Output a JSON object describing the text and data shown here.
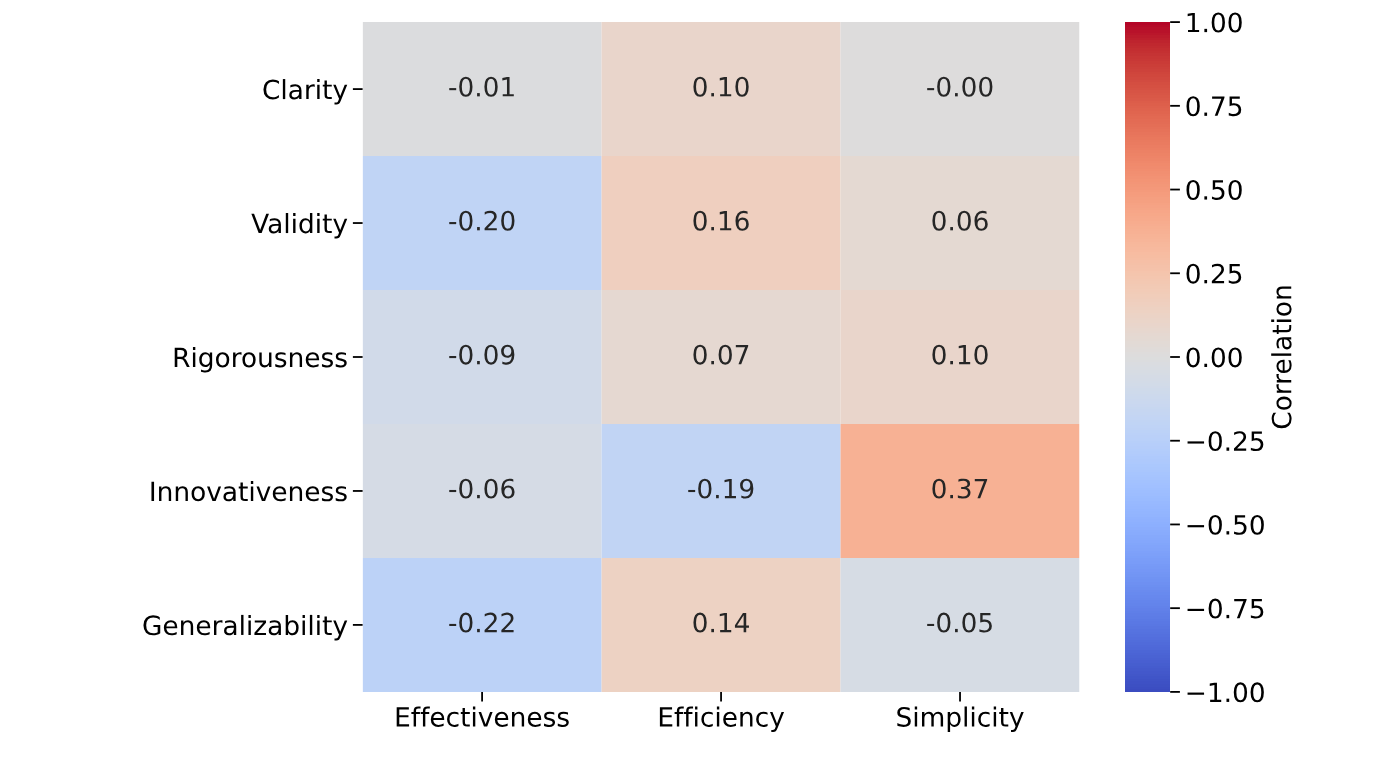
{
  "chart_data": {
    "type": "heatmap",
    "categories": [
      "Effectiveness",
      "Efficiency",
      "Simplicity"
    ],
    "y_categories": [
      "Clarity",
      "Validity",
      "Rigorousness",
      "Innovativeness",
      "Generalizability"
    ],
    "cells": [
      [
        -0.01,
        0.1,
        -0.0
      ],
      [
        -0.2,
        0.16,
        0.06
      ],
      [
        -0.09,
        0.07,
        0.1
      ],
      [
        -0.06,
        -0.19,
        0.37
      ],
      [
        -0.22,
        0.14,
        -0.05
      ]
    ],
    "cell_labels": [
      [
        "-0.01",
        "0.10",
        "-0.00"
      ],
      [
        "-0.20",
        "0.16",
        "0.06"
      ],
      [
        "-0.09",
        "0.07",
        "0.10"
      ],
      [
        "-0.06",
        "-0.19",
        "0.37"
      ],
      [
        "-0.22",
        "0.14",
        "-0.05"
      ]
    ],
    "clim": [
      -1,
      1
    ],
    "cticks": [
      {
        "value": -1,
        "label": "−1.00"
      },
      {
        "value": -0.75,
        "label": "−0.75"
      },
      {
        "value": -0.5,
        "label": "−0.50"
      },
      {
        "value": -0.25,
        "label": "−0.25"
      },
      {
        "value": 0,
        "label": "0.00"
      },
      {
        "value": 0.25,
        "label": "0.25"
      },
      {
        "value": 0.5,
        "label": "0.50"
      },
      {
        "value": 0.75,
        "label": "0.75"
      },
      {
        "value": 1,
        "label": "1.00"
      }
    ],
    "clabel": "Correlation"
  }
}
